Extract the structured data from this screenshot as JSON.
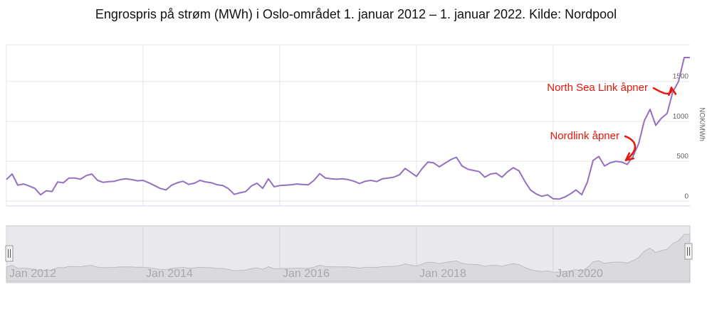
{
  "chart_data": {
    "type": "line",
    "title": "Engrospris på strøm (MWh) i Oslo-området 1. januar 2012 – 1. januar 2022. Kilde: Nordpool",
    "ylabel": "NOK/MWh",
    "yticks": [
      0,
      500,
      1000,
      1500
    ],
    "ylim": [
      -60,
      1960
    ],
    "grid": true,
    "series_color": "#9370c0",
    "annotation_color": "#e8170b",
    "annotations": [
      {
        "text": "North Sea Link åpner",
        "target_date": "2021-10"
      },
      {
        "text": "Nordlink åpner",
        "target_date": "2021-02"
      }
    ],
    "navigator": {
      "labels": [
        "Jan 2012",
        "Jan 2014",
        "Jan 2016",
        "Jan 2018",
        "Jan 2020"
      ],
      "label_dates": [
        "2012-01",
        "2014-01",
        "2016-01",
        "2018-01",
        "2020-01"
      ],
      "handle_icon": "grip-lines"
    },
    "series": [
      {
        "x": [
          "2012-01",
          "2012-02",
          "2012-03",
          "2012-04",
          "2012-05",
          "2012-06",
          "2012-07",
          "2012-08",
          "2012-09",
          "2012-10",
          "2012-11",
          "2012-12",
          "2013-01",
          "2013-02",
          "2013-03",
          "2013-04",
          "2013-05",
          "2013-06",
          "2013-07",
          "2013-08",
          "2013-09",
          "2013-10",
          "2013-11",
          "2013-12",
          "2014-01",
          "2014-02",
          "2014-03",
          "2014-04",
          "2014-05",
          "2014-06",
          "2014-07",
          "2014-08",
          "2014-09",
          "2014-10",
          "2014-11",
          "2014-12",
          "2015-01",
          "2015-02",
          "2015-03",
          "2015-04",
          "2015-05",
          "2015-06",
          "2015-07",
          "2015-08",
          "2015-09",
          "2015-10",
          "2015-11",
          "2015-12",
          "2016-01",
          "2016-02",
          "2016-03",
          "2016-04",
          "2016-05",
          "2016-06",
          "2016-07",
          "2016-08",
          "2016-09",
          "2016-10",
          "2016-11",
          "2016-12",
          "2017-01",
          "2017-02",
          "2017-03",
          "2017-04",
          "2017-05",
          "2017-06",
          "2017-07",
          "2017-08",
          "2017-09",
          "2017-10",
          "2017-11",
          "2017-12",
          "2018-01",
          "2018-02",
          "2018-03",
          "2018-04",
          "2018-05",
          "2018-06",
          "2018-07",
          "2018-08",
          "2018-09",
          "2018-10",
          "2018-11",
          "2018-12",
          "2019-01",
          "2019-02",
          "2019-03",
          "2019-04",
          "2019-05",
          "2019-06",
          "2019-07",
          "2019-08",
          "2019-09",
          "2019-10",
          "2019-11",
          "2019-12",
          "2020-01",
          "2020-02",
          "2020-03",
          "2020-04",
          "2020-05",
          "2020-06",
          "2020-07",
          "2020-08",
          "2020-09",
          "2020-10",
          "2020-11",
          "2020-12",
          "2021-01",
          "2021-02",
          "2021-03",
          "2021-04",
          "2021-05",
          "2021-06",
          "2021-07",
          "2021-08",
          "2021-09",
          "2021-10",
          "2021-11",
          "2021-12",
          "2022-01"
        ],
        "values": [
          270,
          340,
          200,
          215,
          190,
          160,
          80,
          130,
          120,
          240,
          230,
          290,
          290,
          275,
          320,
          340,
          260,
          235,
          245,
          250,
          270,
          280,
          270,
          255,
          260,
          230,
          195,
          160,
          140,
          200,
          230,
          250,
          210,
          225,
          260,
          240,
          230,
          205,
          195,
          155,
          85,
          105,
          120,
          190,
          225,
          160,
          280,
          180,
          195,
          200,
          205,
          215,
          210,
          205,
          260,
          345,
          290,
          280,
          275,
          280,
          270,
          250,
          220,
          250,
          260,
          245,
          280,
          290,
          300,
          330,
          410,
          360,
          310,
          410,
          490,
          480,
          430,
          475,
          520,
          550,
          440,
          400,
          385,
          370,
          300,
          340,
          350,
          300,
          370,
          420,
          380,
          250,
          140,
          90,
          60,
          80,
          30,
          25,
          50,
          90,
          140,
          80,
          240,
          510,
          560,
          440,
          480,
          500,
          490,
          460,
          560,
          720,
          1010,
          1150,
          950,
          1040,
          1100,
          1370,
          1500,
          1800,
          1800
        ]
      }
    ]
  }
}
